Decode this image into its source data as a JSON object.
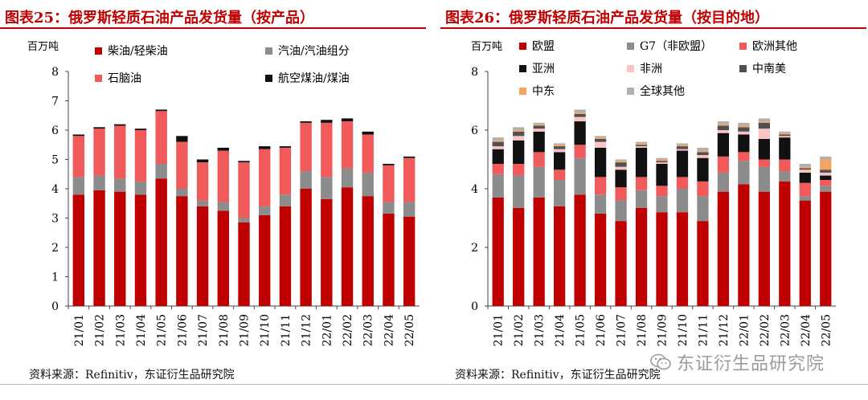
{
  "chart_data": [
    {
      "type": "bar",
      "stacked": true,
      "title": "图表25：俄罗斯轻质石油产品发货量（按产品）",
      "ylabel": "百万吨",
      "ylim": [
        0,
        8
      ],
      "yticks": [
        0,
        1,
        2,
        3,
        4,
        5,
        6,
        7,
        8
      ],
      "grid": false,
      "legend": "top",
      "categories": [
        "21/01",
        "21/02",
        "21/03",
        "21/04",
        "21/05",
        "21/06",
        "21/07",
        "21/08",
        "21/09",
        "21/10",
        "21/11",
        "21/12",
        "22/01",
        "22/02",
        "22/03",
        "22/04",
        "22/05"
      ],
      "series": [
        {
          "name": "柴油/轻柴油",
          "color": "#c00000",
          "values": [
            3.8,
            3.95,
            3.9,
            3.8,
            4.35,
            3.75,
            3.4,
            3.25,
            2.85,
            3.1,
            3.4,
            4.0,
            3.65,
            4.05,
            3.75,
            3.15,
            3.05
          ]
        },
        {
          "name": "汽油/汽油组分",
          "color": "#8c8c8c",
          "values": [
            0.6,
            0.5,
            0.45,
            0.45,
            0.5,
            0.25,
            0.2,
            0.3,
            0.15,
            0.3,
            0.4,
            0.6,
            0.75,
            0.65,
            0.8,
            0.4,
            0.5
          ]
        },
        {
          "name": "石脑油",
          "color": "#f05a5a",
          "values": [
            1.4,
            1.6,
            1.8,
            1.75,
            1.8,
            1.6,
            1.3,
            1.75,
            1.9,
            1.95,
            1.6,
            1.65,
            1.85,
            1.6,
            1.3,
            1.25,
            1.5
          ]
        },
        {
          "name": "航空煤油/煤油",
          "color": "#111111",
          "values": [
            0.05,
            0.05,
            0.05,
            0.05,
            0.05,
            0.2,
            0.1,
            0.1,
            0.05,
            0.1,
            0.05,
            0.05,
            0.1,
            0.1,
            0.1,
            0.05,
            0.05
          ]
        }
      ]
    },
    {
      "type": "bar",
      "stacked": true,
      "title": "图表26：俄罗斯轻质石油产品发货量（按目的地）",
      "ylabel": "百万吨",
      "ylim": [
        0,
        8
      ],
      "yticks": [
        0,
        2,
        4,
        6,
        8
      ],
      "grid": false,
      "legend": "top",
      "categories": [
        "21/01",
        "21/02",
        "21/03",
        "21/04",
        "21/05",
        "21/06",
        "21/07",
        "21/08",
        "21/09",
        "21/10",
        "21/11",
        "21/12",
        "22/01",
        "22/02",
        "22/03",
        "22/04",
        "22/05"
      ],
      "series": [
        {
          "name": "欧盟",
          "color": "#c00000",
          "values": [
            3.7,
            3.35,
            3.7,
            3.4,
            3.8,
            3.15,
            2.9,
            3.35,
            3.2,
            3.2,
            2.9,
            3.9,
            4.15,
            3.9,
            4.25,
            3.6,
            3.9
          ]
        },
        {
          "name": "G7（非欧盟）",
          "color": "#8c8c8c",
          "values": [
            0.8,
            1.1,
            1.05,
            0.9,
            1.25,
            0.65,
            0.7,
            0.6,
            0.55,
            0.8,
            0.85,
            0.65,
            0.8,
            0.85,
            0.35,
            0.15,
            0.2
          ]
        },
        {
          "name": "欧洲其他",
          "color": "#f05a5a",
          "values": [
            0.35,
            0.4,
            0.5,
            0.35,
            0.45,
            0.6,
            0.45,
            0.45,
            0.35,
            0.4,
            0.5,
            0.55,
            0.3,
            0.25,
            0.4,
            0.45,
            0.2
          ]
        },
        {
          "name": "亚洲",
          "color": "#111111",
          "values": [
            0.5,
            0.8,
            0.7,
            0.6,
            0.8,
            1.0,
            0.6,
            1.0,
            0.75,
            0.9,
            0.8,
            0.8,
            0.6,
            0.7,
            0.75,
            0.35,
            0.15
          ]
        },
        {
          "name": "非洲",
          "color": "#f9c4c4",
          "values": [
            0.1,
            0.15,
            0.1,
            0.1,
            0.15,
            0.2,
            0.1,
            0.05,
            0.05,
            0.05,
            0.1,
            0.1,
            0.1,
            0.35,
            0.05,
            0.1,
            0.1
          ]
        },
        {
          "name": "中南美",
          "color": "#505050",
          "values": [
            0.15,
            0.15,
            0.1,
            0.1,
            0.1,
            0.1,
            0.15,
            0.05,
            0.05,
            0.1,
            0.1,
            0.15,
            0.15,
            0.2,
            0.05,
            0.05,
            0.1
          ]
        },
        {
          "name": "中东",
          "color": "#f4a460",
          "values": [
            0.05,
            0.05,
            0.05,
            0.05,
            0.05,
            0.05,
            0.05,
            0.05,
            0.05,
            0.05,
            0.05,
            0.05,
            0.05,
            0.05,
            0.05,
            0.05,
            0.35
          ]
        },
        {
          "name": "全球其他",
          "color": "#b0b0b0",
          "values": [
            0.1,
            0.1,
            0.05,
            0.05,
            0.1,
            0.05,
            0.05,
            0.05,
            0.05,
            0.05,
            0.1,
            0.1,
            0.1,
            0.1,
            0.05,
            0.1,
            0.1
          ]
        }
      ]
    }
  ],
  "footer": {
    "source_left": "资料来源：Refinitiv，东证衍生品研究院",
    "source_right": "资料来源：Refinitiv，东证衍生品研究院",
    "watermark": "东证衍生品研究院"
  },
  "watermark_icon": "wechat-icon"
}
